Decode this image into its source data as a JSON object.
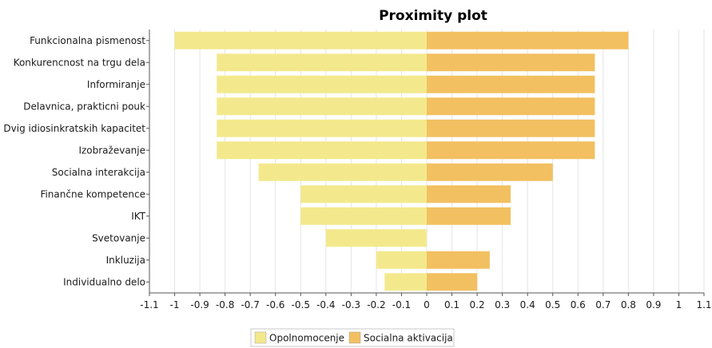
{
  "chart_data": {
    "type": "bar",
    "orientation": "horizontal",
    "title": "Proximity plot",
    "xlabel": "",
    "ylabel": "",
    "xlim": [
      -1.1,
      1.1
    ],
    "xticks": [
      "-1.1",
      "-1",
      "-0.9",
      "-0.8",
      "-0.7",
      "-0.6",
      "-0.5",
      "-0.4",
      "-0.3",
      "-0.2",
      "-0.1",
      "0",
      "0.1",
      "0.2",
      "0.3",
      "0.4",
      "0.5",
      "0.6",
      "0.7",
      "0.8",
      "0.9",
      "1",
      "1.1"
    ],
    "grid": true,
    "legend_position": "bottom",
    "categories": [
      "Funkcionalna pismenost",
      "Konkurencnost na trgu dela",
      "Informiranje",
      "Delavnica, prakticni pouk",
      "Dvig idiosinkratskih kapacitet",
      "Izobraževanje",
      "Socialna interakcija",
      "Finančne kompetence",
      "IKT",
      "Svetovanje",
      "Inkluzija",
      "Individualno delo"
    ],
    "series": [
      {
        "name": "Opolnomocenje",
        "color": "#f3e98c",
        "values": [
          -1.0,
          -0.833,
          -0.833,
          -0.833,
          -0.833,
          -0.833,
          -0.667,
          -0.5,
          -0.5,
          -0.4,
          -0.2,
          -0.167
        ]
      },
      {
        "name": "Socialna aktivacija",
        "color": "#f2c060",
        "values": [
          0.8,
          0.667,
          0.667,
          0.667,
          0.667,
          0.667,
          0.5,
          0.333,
          0.333,
          0.0,
          0.25,
          0.2
        ]
      }
    ]
  }
}
